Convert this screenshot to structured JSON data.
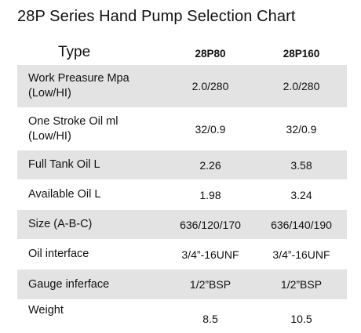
{
  "title": "28P Series Hand Pump Selection Chart",
  "header": {
    "type": "Type",
    "model_a": "28P80",
    "model_b": "28P160"
  },
  "rows": [
    {
      "label": "Work Preasure Mpa\n(Low/HI)",
      "a": "2.0/280",
      "b": "2.0/280",
      "shaded": true
    },
    {
      "label": "One Stroke Oil ml\n(Low/HI)",
      "a": "32/0.9",
      "b": "32/0.9",
      "shaded": false
    },
    {
      "label": "Full Tank Oil L",
      "a": "2.26",
      "b": "3.58",
      "shaded": true
    },
    {
      "label": "Available Oil L",
      "a": "1.98",
      "b": "3.24",
      "shaded": false
    },
    {
      "label": "Size (A-B-C)",
      "a": "636/120/170",
      "b": "636/140/190",
      "shaded": true
    },
    {
      "label": "Oil interface",
      "a": "3/4”-16UNF",
      "b": "3/4”-16UNF",
      "shaded": false
    },
    {
      "label": "Gauge inferface",
      "a": "1/2”BSP",
      "b": "1/2”BSP",
      "shaded": true
    },
    {
      "label": "Weight",
      "a": "8.5",
      "b": "10.5",
      "shaded": false
    }
  ]
}
